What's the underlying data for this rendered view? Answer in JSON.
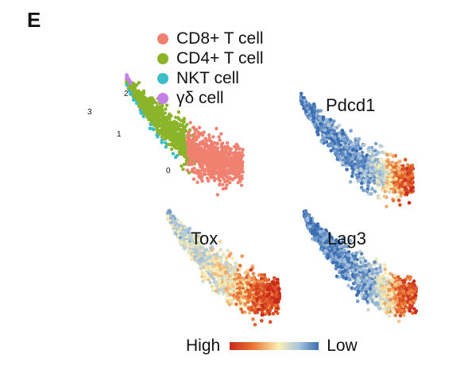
{
  "panel_letter": "E",
  "chart_data": [
    {
      "type": "scatter",
      "plot": "umap-clusters",
      "title": "",
      "series": [
        {
          "name": "CD8+ T cell",
          "cluster": "0",
          "color": "#F08070"
        },
        {
          "name": "CD4+ T cell",
          "cluster": "1",
          "color": "#8CB42A"
        },
        {
          "name": "NKT cell",
          "cluster": "2",
          "color": "#3CBCC8"
        },
        {
          "name": "γδ cell",
          "cluster": "3",
          "color": "#C580E6"
        }
      ],
      "cluster_labels": [
        "0",
        "1",
        "2",
        "3"
      ],
      "legend_position": "top"
    },
    {
      "type": "scatter",
      "plot": "feature-expression",
      "title": "Pdcd1",
      "pattern": [
        [
          0,
          0.95
        ],
        [
          0.3,
          0.9
        ],
        [
          0.6,
          0.85
        ],
        [
          0.85,
          0.3
        ],
        [
          1,
          0.1
        ]
      ]
    },
    {
      "type": "scatter",
      "plot": "feature-expression",
      "title": "Tox",
      "pattern": [
        [
          0,
          0.7
        ],
        [
          0.3,
          0.6
        ],
        [
          0.55,
          0.5
        ],
        [
          0.8,
          0.18
        ],
        [
          1,
          0.05
        ]
      ]
    },
    {
      "type": "scatter",
      "plot": "feature-expression",
      "title": "Lag3",
      "pattern": [
        [
          0,
          0.95
        ],
        [
          0.35,
          0.92
        ],
        [
          0.6,
          0.8
        ],
        [
          0.85,
          0.25
        ],
        [
          1,
          0.1
        ]
      ]
    }
  ],
  "colorbar": {
    "high_label": "High",
    "low_label": "Low",
    "colors": [
      "#c8281c",
      "#e8702e",
      "#fbf0b4",
      "#a6c3de",
      "#3a6db2"
    ]
  }
}
